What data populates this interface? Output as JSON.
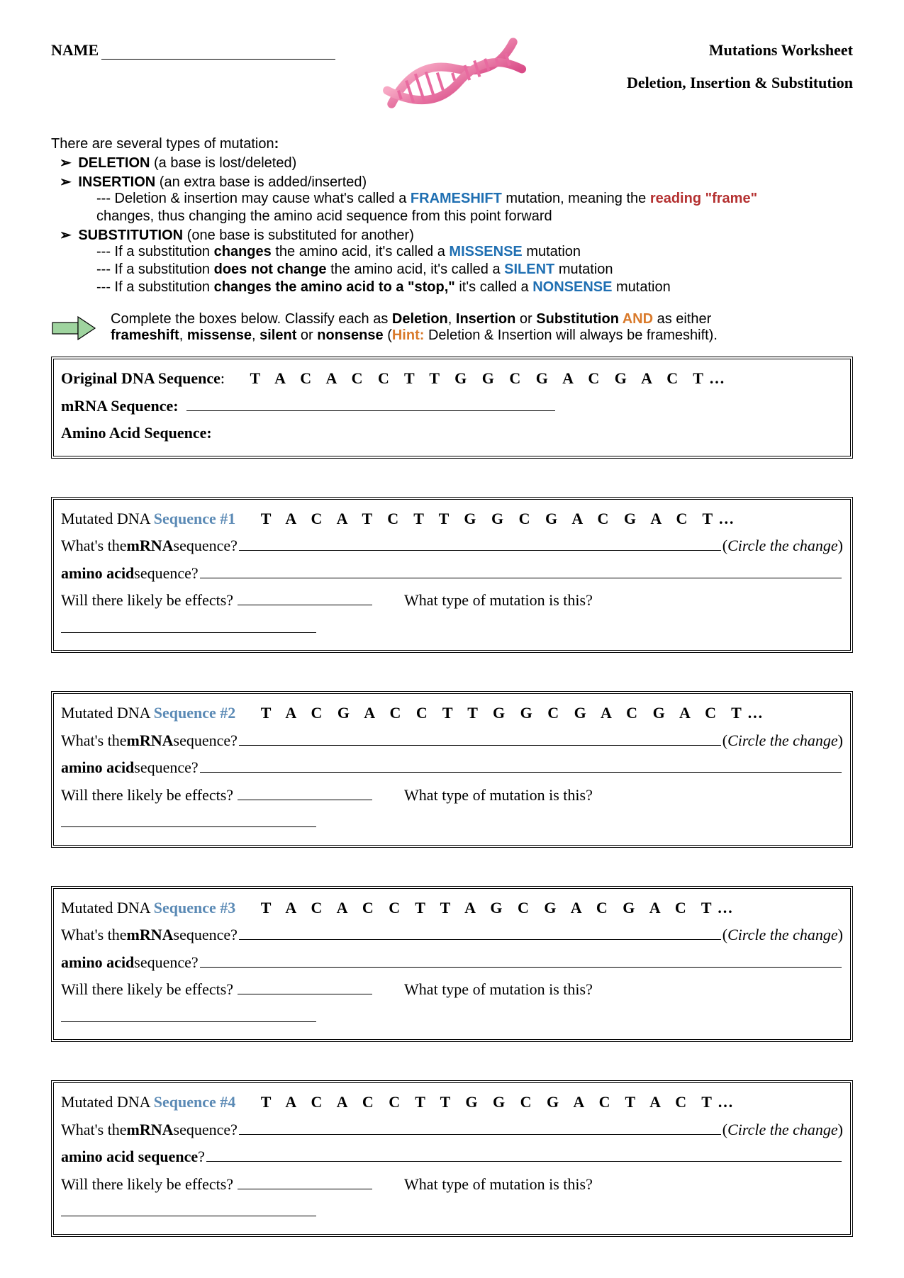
{
  "header": {
    "name_label": "NAME",
    "title": "Mutations Worksheet",
    "subtitle_parts": [
      "Deletion",
      ", ",
      "Insertion",
      " & ",
      "Substitution"
    ]
  },
  "intro": {
    "lead": "There are several types of mutation",
    "colon": ":",
    "deletion": {
      "term": "DELETION",
      "desc": " (a base is lost/deleted)"
    },
    "insertion": {
      "term": "INSERTION",
      "desc": " (an extra base is added/inserted)"
    },
    "frameshift_line_pre": "--- Deletion & insertion may cause what's called a ",
    "frameshift": "FRAMESHIFT",
    "frameshift_mid": " mutation, meaning the ",
    "reading": "reading",
    "frame_quote": " \"frame\"",
    "frameshift_line2": "changes, thus changing the amino acid sequence from this point forward",
    "substitution": {
      "term": "SUBSTITUTION",
      "desc": " (one base is substituted for another)"
    },
    "missense_pre": "--- If a substitution ",
    "changes": "changes",
    "missense_mid": " the amino acid, it's called a ",
    "missense": "MISSENSE",
    "mutation_word": " mutation",
    "silent_pre": "--- If a substitution ",
    "does_not_change": "does not change",
    "silent_mid": " the amino acid, it's called a ",
    "silent": "SILENT",
    "nonsense_pre": "--- If a substitution ",
    "changes_to_stop": "changes the amino acid to a \"stop,\"",
    "nonsense_mid": " it's called a ",
    "nonsense": "NONSENSE"
  },
  "instructions": {
    "line1_pre": "Complete the boxes below.  Classify each as ",
    "del": "Deletion",
    "comma1": ", ",
    "ins": "Insertion",
    "or": " or ",
    "sub": "Substitution",
    "and": " AND",
    "as_either": " as either",
    "line2_pre": "",
    "fs": "frameshift",
    "c1": ", ",
    "ms": "missense",
    "c2": ", ",
    "sl": "silent",
    "or2": " or ",
    "ns": "nonsense",
    "hint_open": " (",
    "hint_label": "Hint:",
    "hint_text": " Deletion & Insertion will always be frameshift)."
  },
  "original_box": {
    "label": "Original DNA Sequence",
    "colon": ":",
    "seq": "T A C A C C T T G G C G A C G A C T",
    "dots": "…",
    "mrna_label": "mRNA Sequence:",
    "aa_label": "Amino Acid Sequence:"
  },
  "questions": {
    "mrna_q_pre": "What's the ",
    "mrna_bold": "mRNA",
    "mrna_q_post": " sequence?",
    "circle": "Circle the change",
    "aa_pre": "amino acid",
    "aa_post": " sequence? ",
    "aa_bold_pre": "amino acid sequence",
    "aa_bold_post": "? ",
    "effects": "Will there likely be effects? ",
    "type_q": "What type of mutation is this? "
  },
  "mutations": [
    {
      "label_pre": "Mutated DNA ",
      "label_seq": "Sequence #1",
      "seq": "T A C A T C T T G G C G A C G A C T",
      "dots": "…",
      "aa_bold": false
    },
    {
      "label_pre": "Mutated DNA ",
      "label_seq": "Sequence #2",
      "seq": "T A C G A C C T T G G C G A C G A C T",
      "dots": "…",
      "aa_bold": false
    },
    {
      "label_pre": "Mutated DNA ",
      "label_seq": "Sequence #3",
      "seq": "T A C A C C T T A G C G A C G A C T",
      "dots": "…",
      "aa_bold": false
    },
    {
      "label_pre": "Mutated DNA ",
      "label_seq": "Sequence #4",
      "seq": "T A C A C C T T G G C G A C T A C T",
      "dots": "…",
      "aa_bold": true
    }
  ],
  "colors": {
    "blue": "#5b8ab5",
    "red": "#b43030",
    "orange": "#d97a2b"
  }
}
